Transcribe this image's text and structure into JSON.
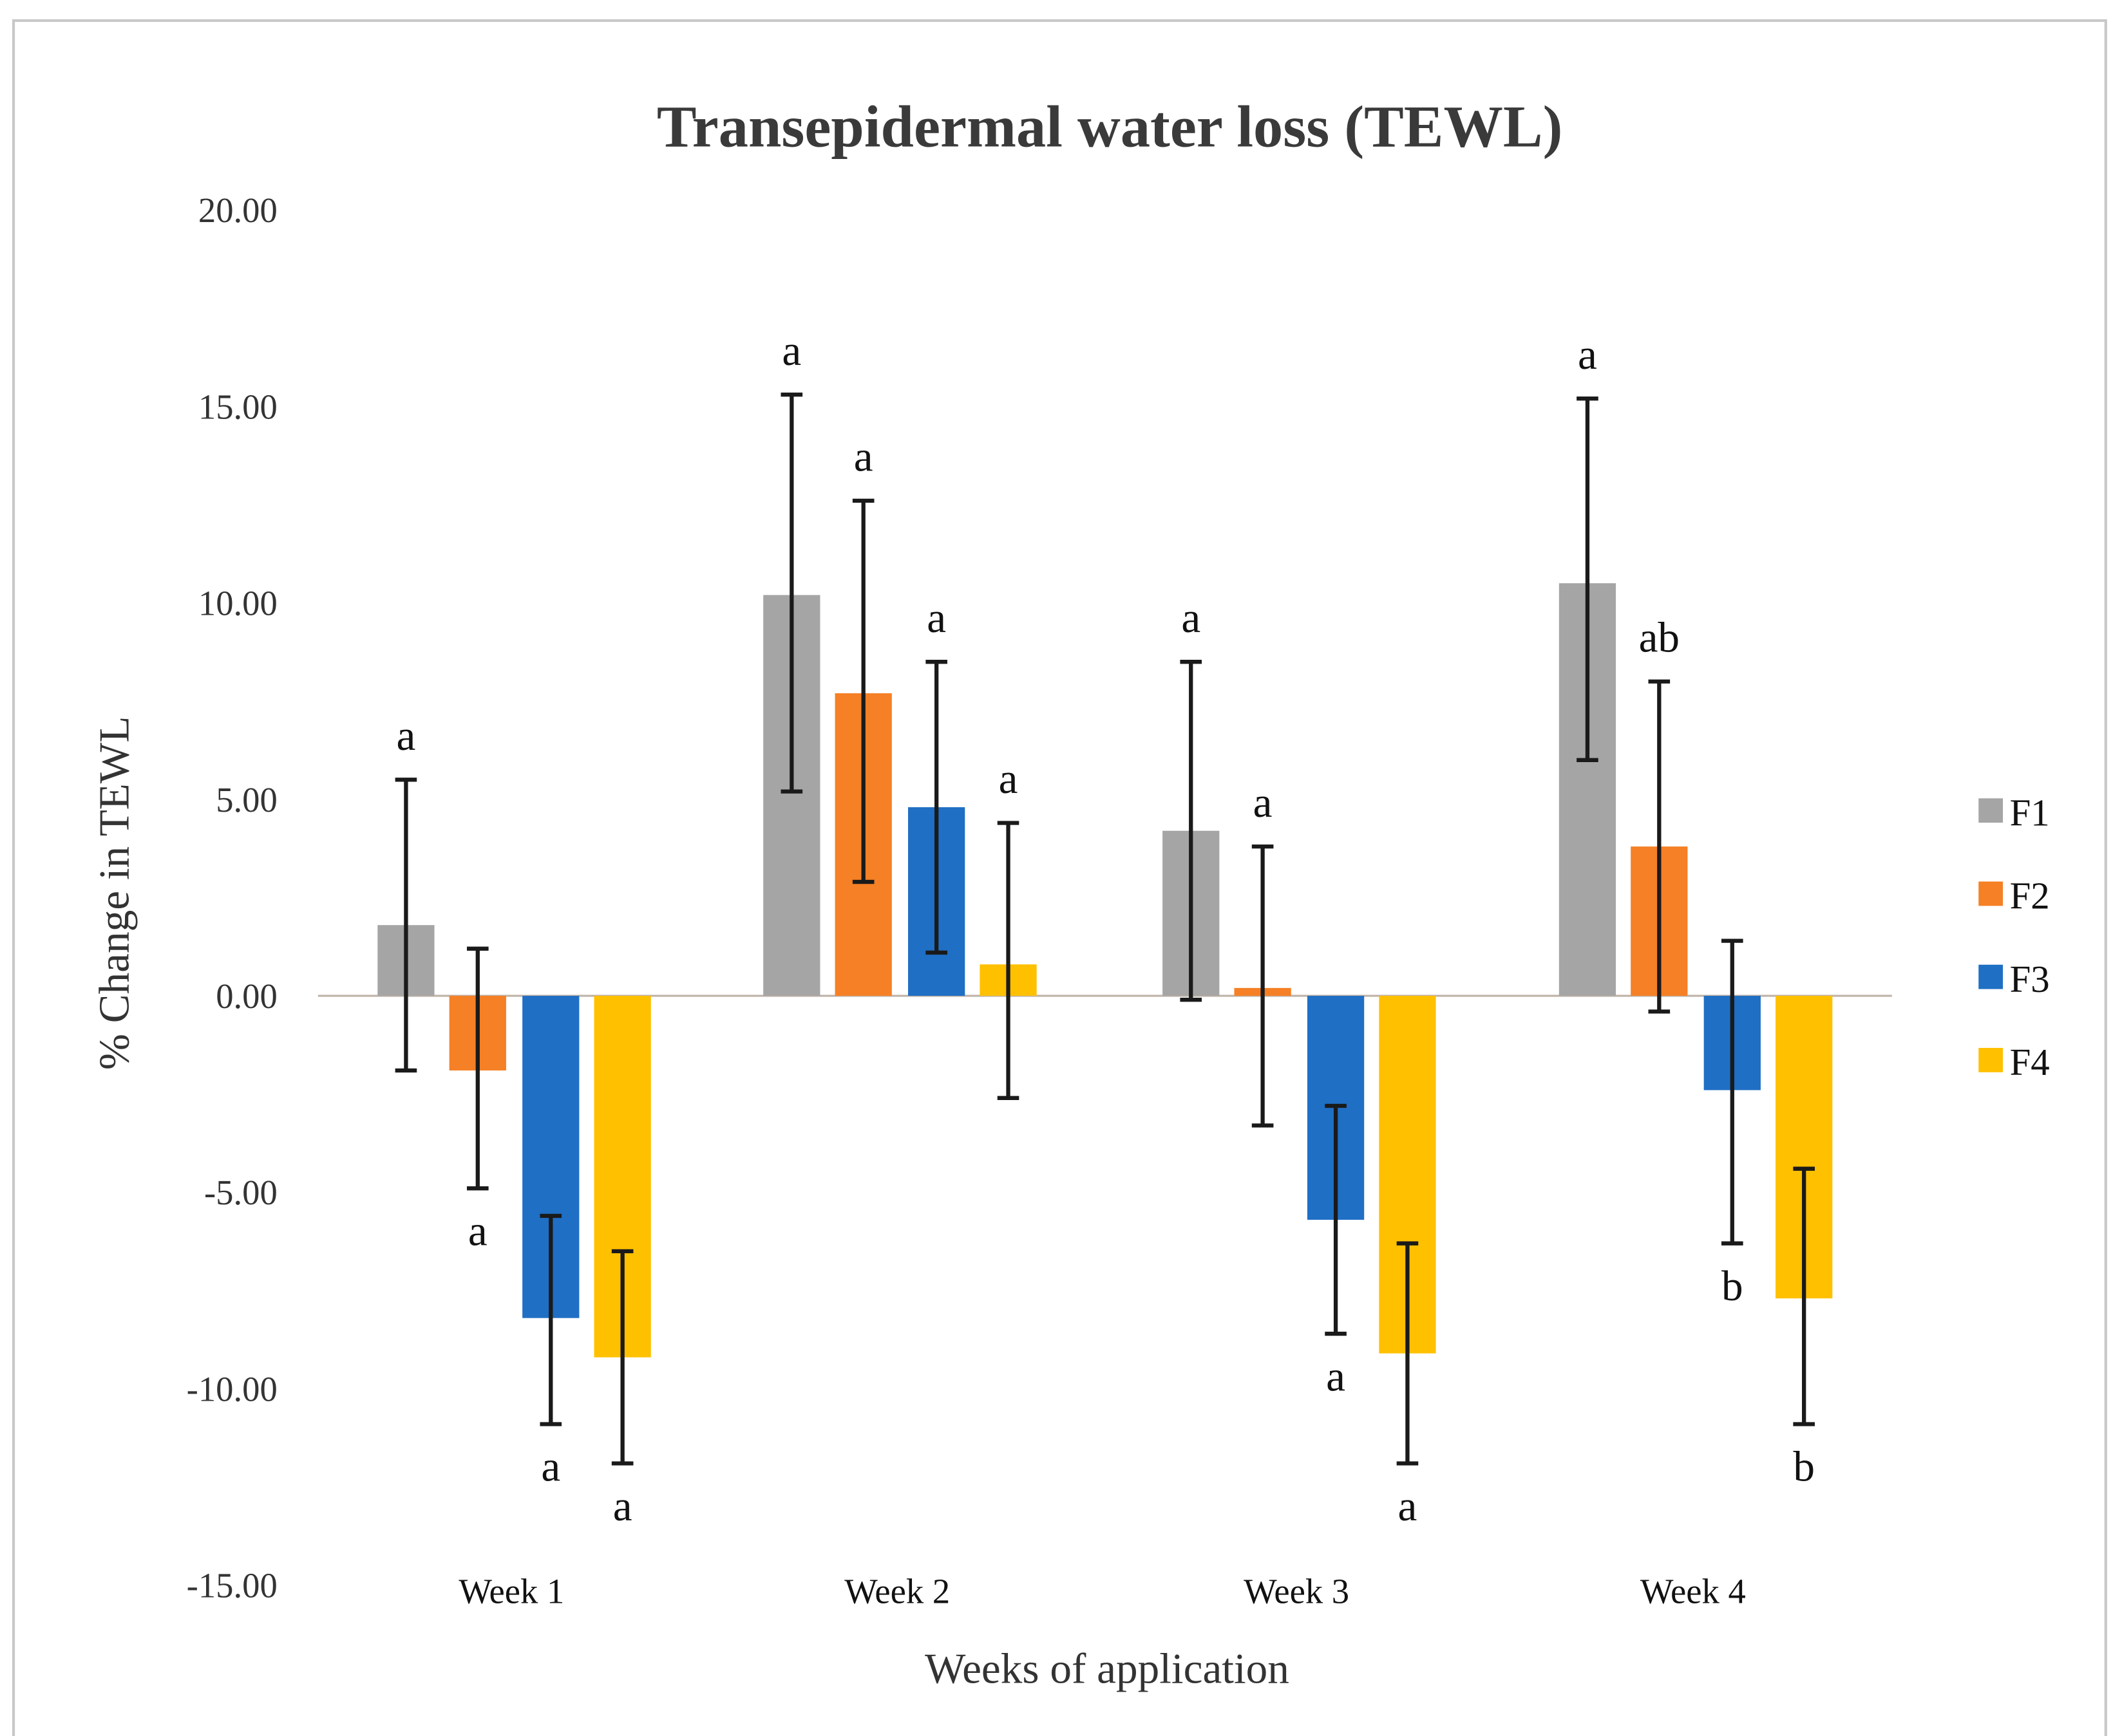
{
  "chart_data": {
    "type": "bar",
    "title": "Transepidermal water loss (TEWL)",
    "xlabel": "Weeks of application",
    "ylabel": "% Change in TEWL",
    "ylim": [
      -15,
      20
    ],
    "yticks": [
      "20.00",
      "15.00",
      "10.00",
      "5.00",
      "0.00",
      "-5.00",
      "-10.00",
      "-15.00"
    ],
    "ytick_values": [
      20,
      15,
      10,
      5,
      0,
      -5,
      -10,
      -15
    ],
    "categories": [
      "Week 1",
      "Week 2",
      "Week 3",
      "Week 4"
    ],
    "legend_position": "right",
    "grid": false,
    "series": [
      {
        "name": "F1",
        "color": "#a5a5a5",
        "values": [
          1.8,
          10.2,
          4.2,
          10.5
        ],
        "err_low": [
          -1.9,
          5.2,
          -0.1,
          6.0
        ],
        "err_high": [
          5.5,
          15.3,
          8.5,
          15.2
        ],
        "letters": [
          "a",
          "a",
          "a",
          "a"
        ]
      },
      {
        "name": "F2",
        "color": "#f58025",
        "values": [
          -1.9,
          7.7,
          0.2,
          3.8
        ],
        "err_low": [
          -4.9,
          2.9,
          -3.3,
          -0.4
        ],
        "err_high": [
          1.2,
          12.6,
          3.8,
          8.0
        ],
        "letters": [
          "a",
          "a",
          "a",
          "ab"
        ]
      },
      {
        "name": "F3",
        "color": "#1f6fc4",
        "values": [
          -8.2,
          4.8,
          -5.7,
          -2.4
        ],
        "err_low": [
          -10.9,
          1.1,
          -8.6,
          -6.3
        ],
        "err_high": [
          -5.6,
          8.5,
          -2.8,
          1.4
        ],
        "letters": [
          "a",
          "a",
          "a",
          "b"
        ]
      },
      {
        "name": "F4",
        "color": "#ffc000",
        "values": [
          -9.2,
          0.8,
          -9.1,
          -7.7
        ],
        "err_low": [
          -11.9,
          -2.6,
          -11.9,
          -10.9
        ],
        "err_high": [
          -6.5,
          4.4,
          -6.3,
          -4.4
        ],
        "letters": [
          "a",
          "a",
          "a",
          "b"
        ]
      }
    ]
  }
}
